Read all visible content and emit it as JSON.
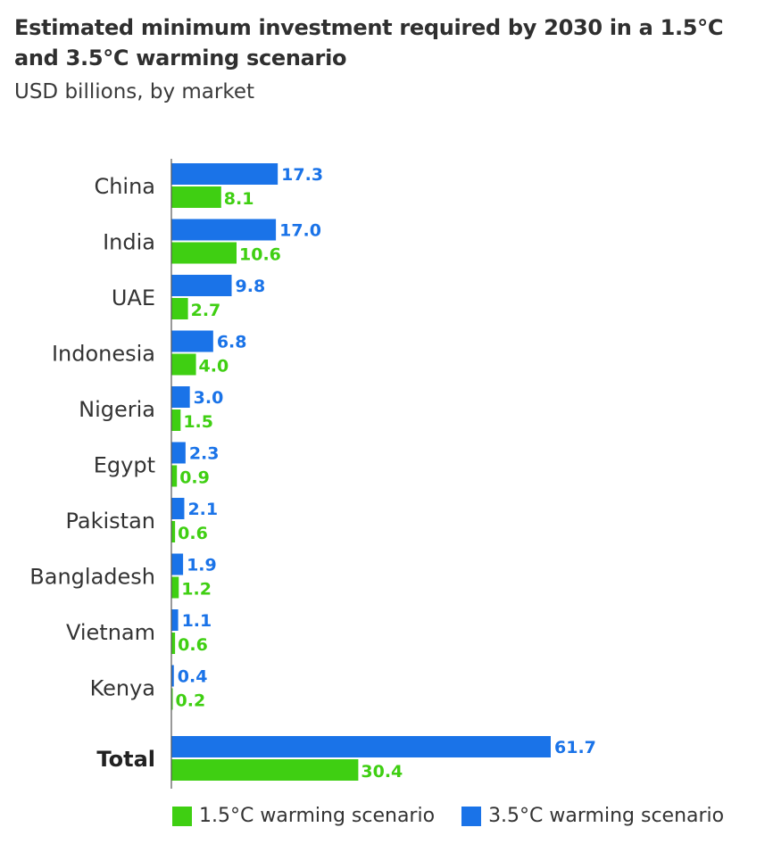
{
  "title": "Estimated minimum investment required by 2030 in a 1.5°C and 3.5°C warming scenario",
  "subtitle": "USD billions, by market",
  "colors": {
    "scenario_15": "#3fcf12",
    "scenario_35": "#1a73e8",
    "axis": "#555555"
  },
  "chart_data": {
    "type": "bar",
    "orientation": "horizontal",
    "title": "Estimated minimum investment required by 2030 in a 1.5°C and 3.5°C warming scenario",
    "subtitle": "USD billions, by market",
    "categories": [
      "China",
      "India",
      "UAE",
      "Indonesia",
      "Nigeria",
      "Egypt",
      "Pakistan",
      "Bangladesh",
      "Vietnam",
      "Kenya",
      "Total"
    ],
    "series": [
      {
        "name": "3.5°C warming scenario",
        "color": "#1a73e8",
        "values": [
          17.3,
          17.0,
          9.8,
          6.8,
          3.0,
          2.3,
          2.1,
          1.9,
          1.1,
          0.4,
          61.7
        ],
        "labels": [
          "17.3",
          "17.0",
          "9.8",
          "6.8",
          "3.0",
          "2.3",
          "2.1",
          "1.9",
          "1.1",
          "0.4",
          "61.7"
        ]
      },
      {
        "name": "1.5°C warming scenario",
        "color": "#3fcf12",
        "values": [
          8.1,
          10.6,
          2.7,
          4.0,
          1.5,
          0.9,
          0.6,
          1.2,
          0.6,
          0.2,
          30.4
        ],
        "labels": [
          "8.1",
          "10.6",
          "2.7",
          "4.0",
          "1.5",
          "0.9",
          "0.6",
          "1.2",
          "0.6",
          "0.2",
          "30.4"
        ]
      }
    ],
    "xlim": [
      0,
      61.7
    ],
    "grid": false,
    "legend": [
      {
        "label": "1.5°C warming scenario",
        "color": "#3fcf12"
      },
      {
        "label": "3.5°C warming scenario",
        "color": "#1a73e8"
      }
    ],
    "legend_position": "bottom"
  }
}
